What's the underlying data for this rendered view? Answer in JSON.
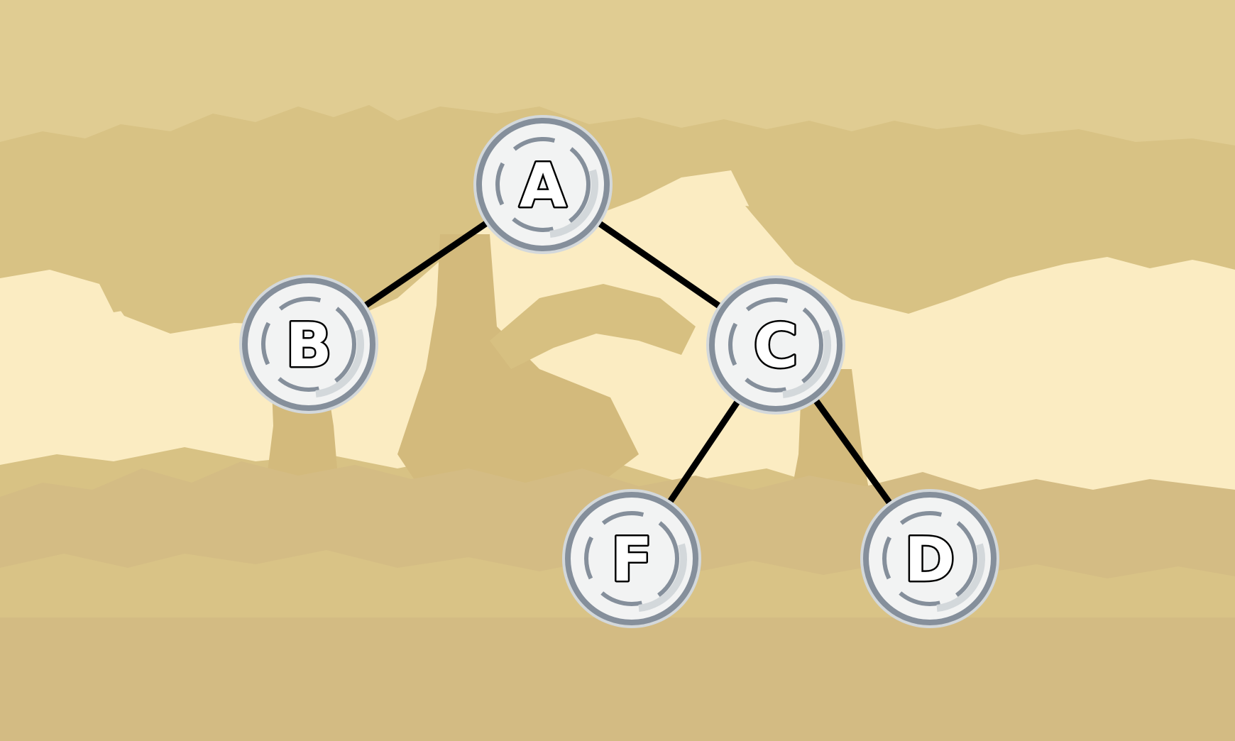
{
  "tree": {
    "nodes": [
      {
        "id": "A",
        "label": "A"
      },
      {
        "id": "B",
        "label": "B"
      },
      {
        "id": "C",
        "label": "C"
      },
      {
        "id": "F",
        "label": "F"
      },
      {
        "id": "D",
        "label": "D"
      }
    ],
    "edges": [
      {
        "from": "A",
        "to": "B"
      },
      {
        "from": "A",
        "to": "C"
      },
      {
        "from": "C",
        "to": "F"
      },
      {
        "from": "C",
        "to": "D"
      }
    ]
  },
  "colors": {
    "sky": "#e0cc92",
    "canopy": "#d8c284",
    "canopy_dark": "#cfb878",
    "clearing": "#fbecc2",
    "ground": "#d4bc84",
    "edge": "#000000",
    "coin_face": "#f2f3f3",
    "coin_rim": "#858f9b",
    "coin_light": "#d3d8db"
  }
}
